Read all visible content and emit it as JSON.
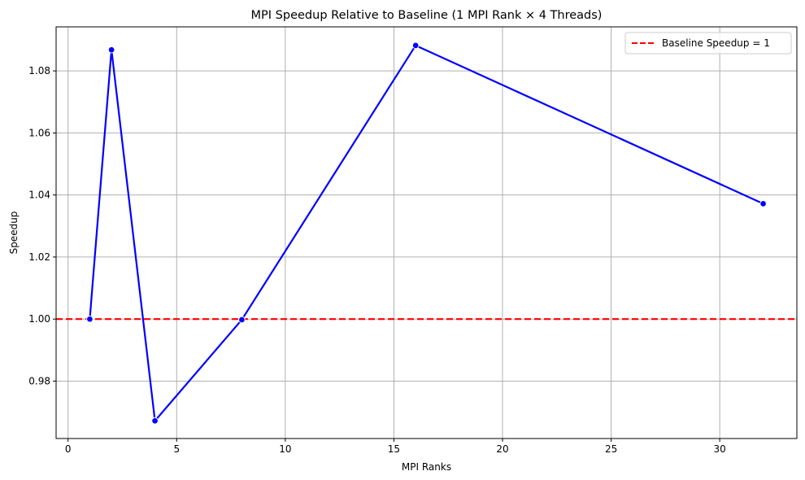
{
  "chart_data": {
    "type": "line",
    "title": "MPI Speedup Relative to Baseline (1 MPI Rank × 4 Threads)",
    "xlabel": "MPI Ranks",
    "ylabel": "Speedup",
    "xlim": [
      -0.55,
      33.55
    ],
    "ylim": [
      0.9615,
      1.0942
    ],
    "xticks": [
      0,
      5,
      10,
      15,
      20,
      25,
      30
    ],
    "yticks": [
      0.98,
      1.0,
      1.02,
      1.04,
      1.06,
      1.08
    ],
    "grid": true,
    "legend_position": "top-right",
    "series": [
      {
        "name": "",
        "color": "#0000ff",
        "marker": "circle",
        "x": [
          1,
          2,
          4,
          8,
          16,
          32
        ],
        "y": [
          1.0,
          1.0868,
          0.9672,
          0.9998,
          1.0882,
          1.0372
        ]
      }
    ],
    "reference_lines": [
      {
        "name": "Baseline Speedup = 1",
        "y": 1.0,
        "color": "#ff0000",
        "style": "dashed"
      }
    ]
  }
}
